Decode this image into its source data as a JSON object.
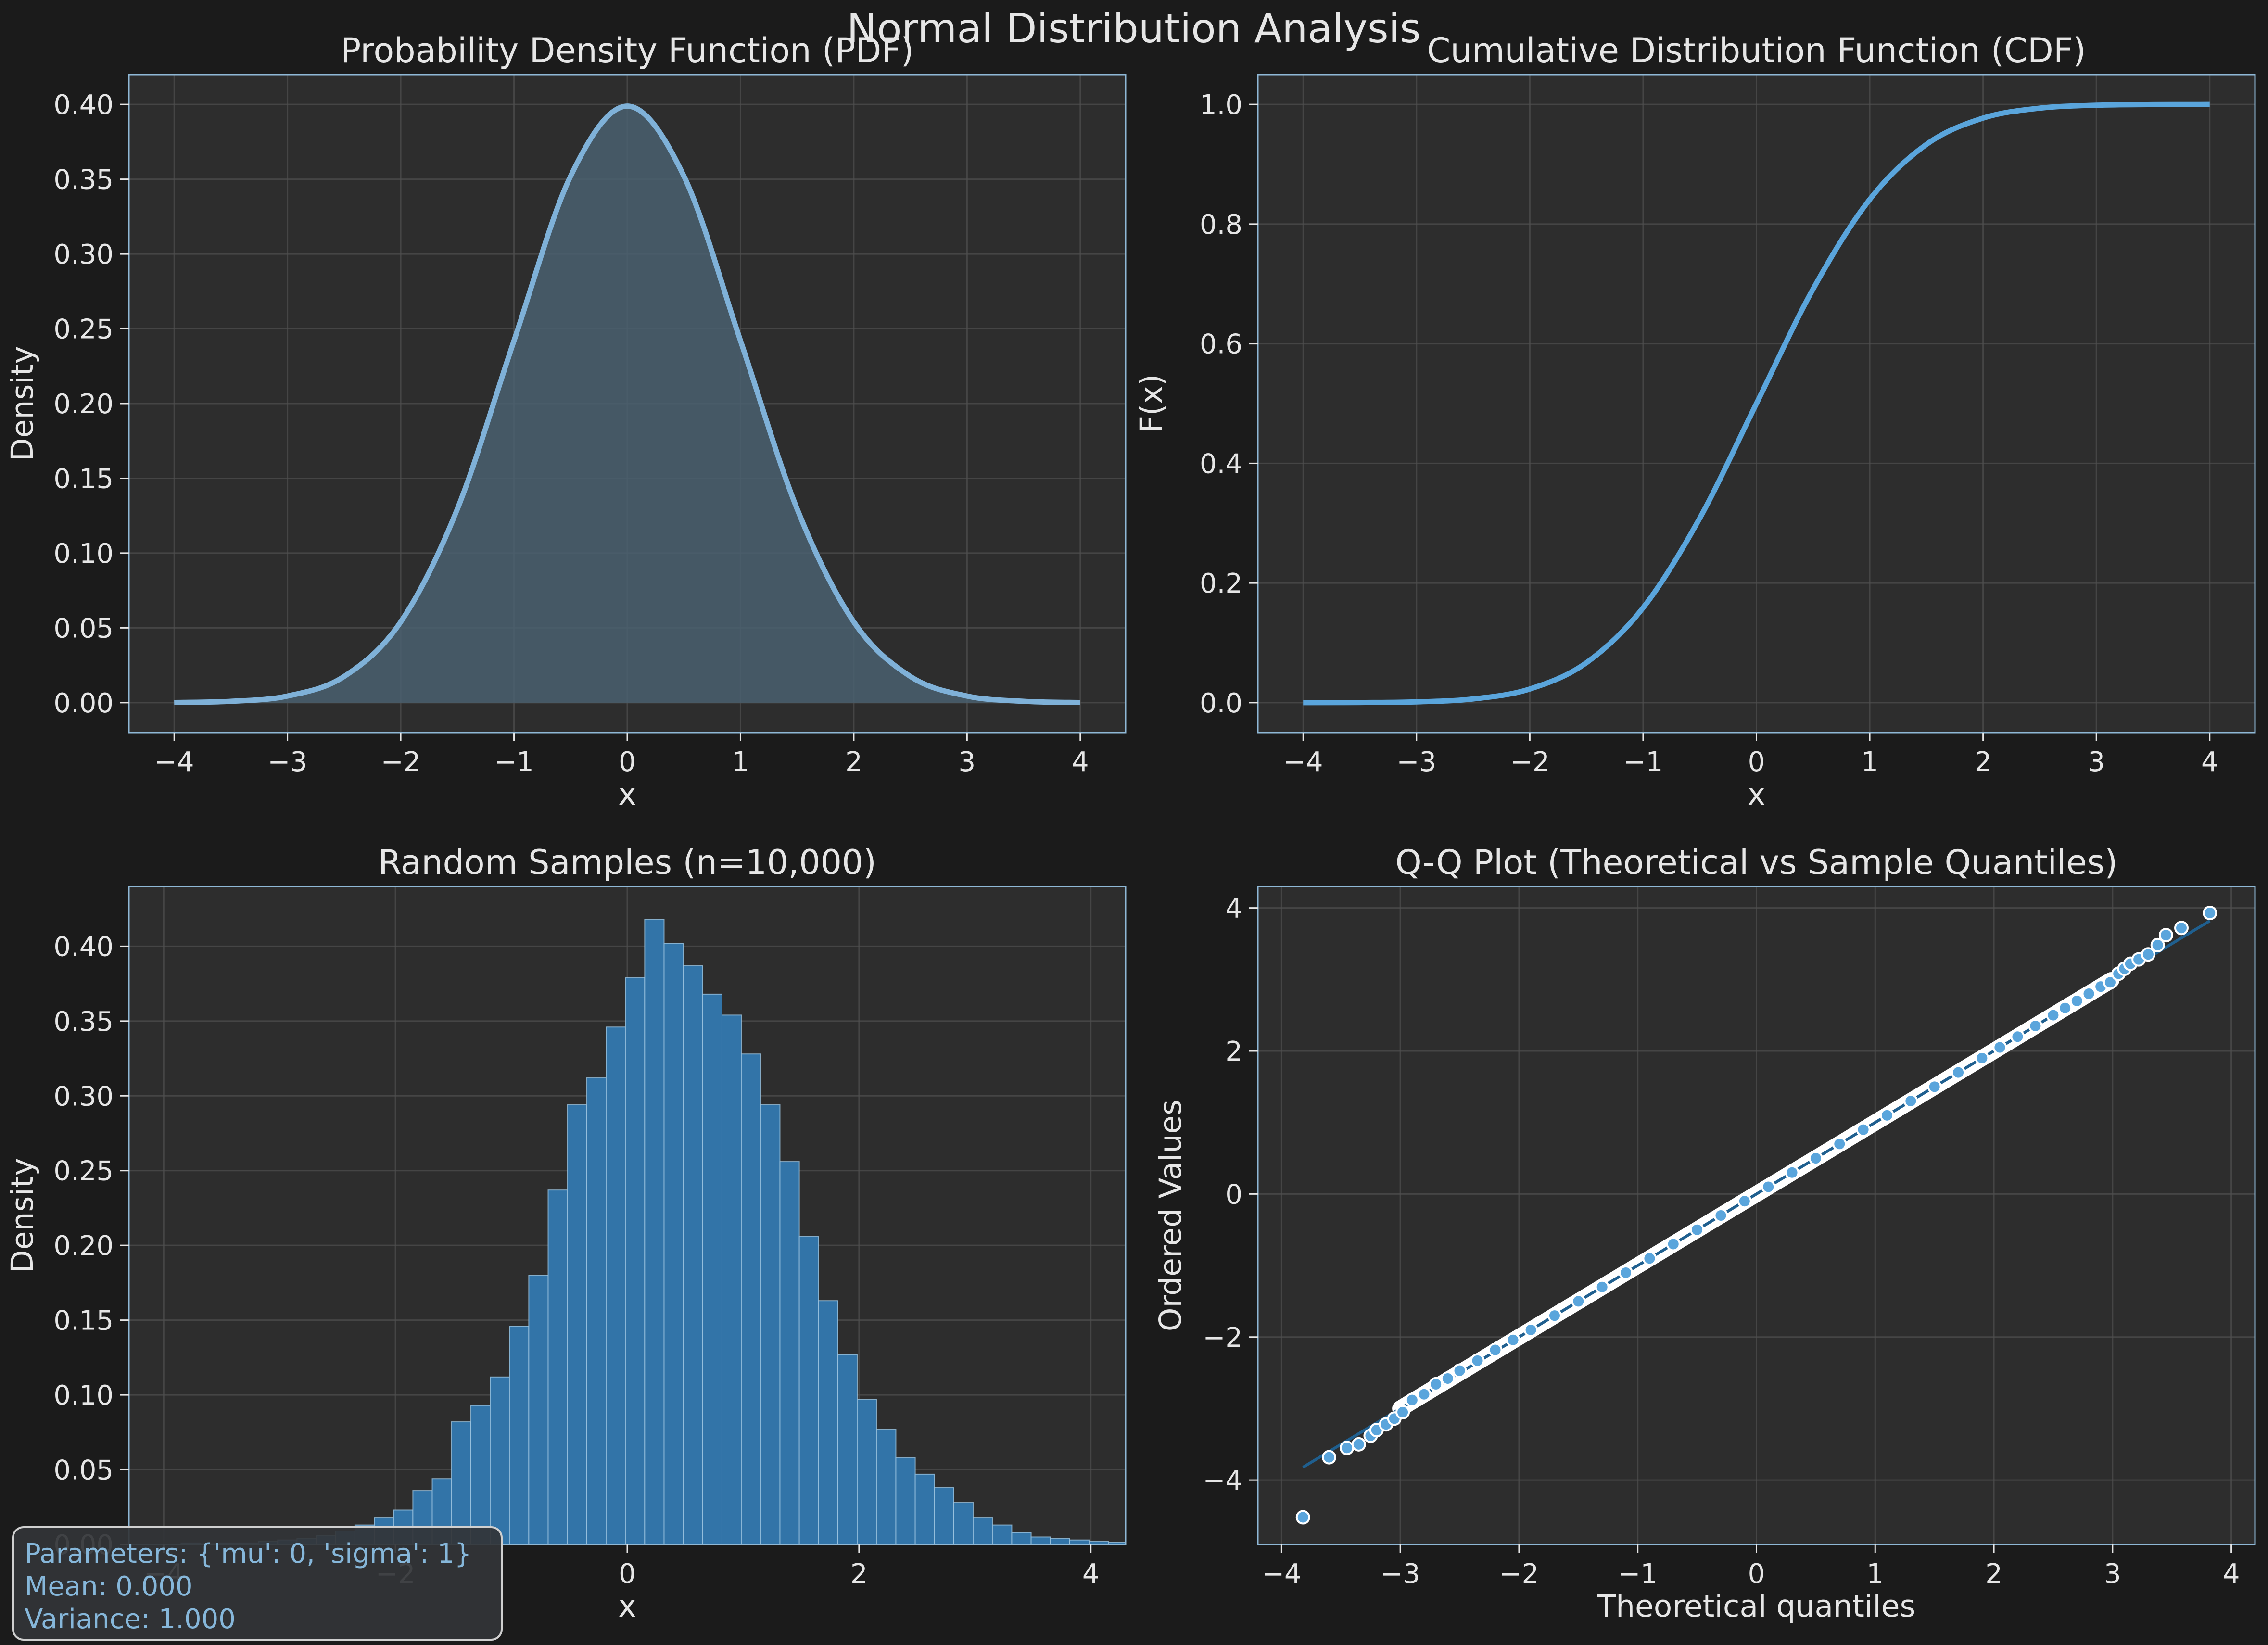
{
  "suptitle": "Normal Distribution Analysis",
  "colors": {
    "background": "#1b1b1b",
    "axes_bg": "#2d2d2d",
    "spine": "#8fb8d6",
    "grid": "#505050",
    "text": "#e6e6e6",
    "pdf_line": "#7fb1d8",
    "pdf_fill": "#4a6070",
    "cdf_line": "#5aa5dc",
    "hist_bar": "#3274a8",
    "hist_edge": "#9cc4e0",
    "qq_point": "#5aa5dc",
    "qq_line": "#1f5f8f",
    "param_text": "#86b7da"
  },
  "param_box": {
    "line1": "Parameters: {'mu': 0, 'sigma': 1}",
    "line2": "Mean: 0.000",
    "line3": "Variance: 1.000"
  },
  "chart_data": [
    {
      "id": "pdf",
      "type": "area",
      "title": "Probability Density Function (PDF)",
      "xlabel": "x",
      "ylabel": "Density",
      "xlim": [
        -4.4,
        4.4
      ],
      "ylim": [
        -0.02,
        0.42
      ],
      "xticks": [
        -4,
        -3,
        -2,
        -1,
        0,
        1,
        2,
        3,
        4
      ],
      "xticklabels": [
        "−4",
        "−3",
        "−2",
        "−1",
        "0",
        "1",
        "2",
        "3",
        "4"
      ],
      "yticks": [
        0,
        0.05,
        0.1,
        0.15,
        0.2,
        0.25,
        0.3,
        0.35,
        0.4
      ],
      "yticklabels": [
        "0.00",
        "0.05",
        "0.10",
        "0.15",
        "0.20",
        "0.25",
        "0.30",
        "0.35",
        "0.40"
      ],
      "grid": true,
      "x": [
        -4,
        -3.5,
        -3,
        -2.5,
        -2,
        -1.5,
        -1,
        -0.5,
        0,
        0.5,
        1,
        1.5,
        2,
        2.5,
        3,
        3.5,
        4
      ],
      "y": [
        0.0001,
        0.0009,
        0.0044,
        0.0175,
        0.054,
        0.1295,
        0.242,
        0.3521,
        0.3989,
        0.3521,
        0.242,
        0.1295,
        0.054,
        0.0175,
        0.0044,
        0.0009,
        0.0001
      ]
    },
    {
      "id": "cdf",
      "type": "line",
      "title": "Cumulative Distribution Function (CDF)",
      "xlabel": "x",
      "ylabel": "F(x)",
      "xlim": [
        -4.4,
        4.4
      ],
      "ylim": [
        -0.05,
        1.05
      ],
      "xticks": [
        -4,
        -3,
        -2,
        -1,
        0,
        1,
        2,
        3,
        4
      ],
      "xticklabels": [
        "−4",
        "−3",
        "−2",
        "−1",
        "0",
        "1",
        "2",
        "3",
        "4"
      ],
      "yticks": [
        0,
        0.2,
        0.4,
        0.6,
        0.8,
        1.0
      ],
      "yticklabels": [
        "0.0",
        "0.2",
        "0.4",
        "0.6",
        "0.8",
        "1.0"
      ],
      "grid": true,
      "x": [
        -4,
        -3.5,
        -3,
        -2.5,
        -2,
        -1.5,
        -1,
        -0.5,
        0,
        0.5,
        1,
        1.5,
        2,
        2.5,
        3,
        3.5,
        4
      ],
      "y": [
        0.0,
        0.0002,
        0.0013,
        0.0062,
        0.0228,
        0.0668,
        0.1587,
        0.3085,
        0.5,
        0.6915,
        0.8413,
        0.9332,
        0.9772,
        0.9938,
        0.9987,
        0.9998,
        1.0
      ]
    },
    {
      "id": "hist",
      "type": "bar",
      "title": "Random Samples (n=10,000)",
      "xlabel": "x",
      "ylabel": "Density",
      "xlim": [
        -4.3,
        4.3
      ],
      "ylim": [
        0,
        0.44
      ],
      "xticks": [
        -4,
        -2,
        0,
        2,
        4
      ],
      "xticklabels": [
        "−4",
        "−2",
        "0",
        "2",
        "4"
      ],
      "yticks": [
        0,
        0.05,
        0.1,
        0.15,
        0.2,
        0.25,
        0.3,
        0.35,
        0.4
      ],
      "yticklabels": [
        "0.00",
        "0.05",
        "0.10",
        "0.15",
        "0.20",
        "0.25",
        "0.30",
        "0.35",
        "0.40"
      ],
      "grid": true,
      "bin_start": -3.85,
      "bin_width": 0.1667,
      "values": [
        0.001,
        0.0005,
        0.001,
        0.001,
        0.002,
        0.003,
        0.004,
        0.006,
        0.009,
        0.013,
        0.018,
        0.023,
        0.036,
        0.044,
        0.082,
        0.093,
        0.112,
        0.146,
        0.18,
        0.237,
        0.294,
        0.312,
        0.346,
        0.379,
        0.418,
        0.402,
        0.387,
        0.368,
        0.354,
        0.328,
        0.294,
        0.256,
        0.206,
        0.163,
        0.127,
        0.097,
        0.077,
        0.058,
        0.047,
        0.038,
        0.028,
        0.018,
        0.013,
        0.008,
        0.005,
        0.004,
        0.003,
        0.002,
        0.0015,
        0.001
      ]
    },
    {
      "id": "qq",
      "type": "scatter",
      "title": "Q-Q Plot (Theoretical vs Sample Quantiles)",
      "xlabel": "Theoretical quantiles",
      "ylabel": "Ordered Values",
      "xlim": [
        -4.2,
        4.2
      ],
      "ylim": [
        -4.9,
        4.3
      ],
      "xticks": [
        -4,
        -3,
        -2,
        -1,
        0,
        1,
        2,
        3,
        4
      ],
      "xticklabels": [
        "−4",
        "−3",
        "−2",
        "−1",
        "0",
        "1",
        "2",
        "3",
        "4"
      ],
      "yticks": [
        -4,
        -2,
        0,
        2,
        4
      ],
      "yticklabels": [
        "−4",
        "−2",
        "0",
        "2",
        "4"
      ],
      "grid": true,
      "fit_line": {
        "x": [
          -3.82,
          3.82
        ],
        "y": [
          -3.82,
          3.82
        ]
      },
      "x": [
        -3.82,
        -3.6,
        -3.45,
        -3.35,
        -3.25,
        -3.2,
        -3.12,
        -3.05,
        -2.98,
        -2.9,
        -2.8,
        -2.7,
        -2.6,
        -2.5,
        -2.35,
        -2.2,
        -2.05,
        -1.9,
        -1.7,
        -1.5,
        -1.3,
        -1.1,
        -0.9,
        -0.7,
        -0.5,
        -0.3,
        -0.1,
        0.1,
        0.3,
        0.5,
        0.7,
        0.9,
        1.1,
        1.3,
        1.5,
        1.7,
        1.9,
        2.05,
        2.2,
        2.35,
        2.5,
        2.6,
        2.7,
        2.8,
        2.9,
        2.98,
        3.05,
        3.1,
        3.15,
        3.22,
        3.3,
        3.38,
        3.45,
        3.58,
        3.82
      ],
      "y": [
        -4.52,
        -3.68,
        -3.55,
        -3.5,
        -3.38,
        -3.3,
        -3.22,
        -3.14,
        -3.05,
        -2.88,
        -2.8,
        -2.66,
        -2.58,
        -2.47,
        -2.33,
        -2.18,
        -2.04,
        -1.9,
        -1.7,
        -1.5,
        -1.3,
        -1.1,
        -0.9,
        -0.7,
        -0.5,
        -0.3,
        -0.1,
        0.1,
        0.3,
        0.5,
        0.7,
        0.9,
        1.1,
        1.3,
        1.5,
        1.7,
        1.9,
        2.05,
        2.2,
        2.35,
        2.5,
        2.6,
        2.7,
        2.8,
        2.9,
        2.96,
        3.08,
        3.15,
        3.22,
        3.28,
        3.35,
        3.48,
        3.62,
        3.72,
        3.93
      ]
    }
  ]
}
